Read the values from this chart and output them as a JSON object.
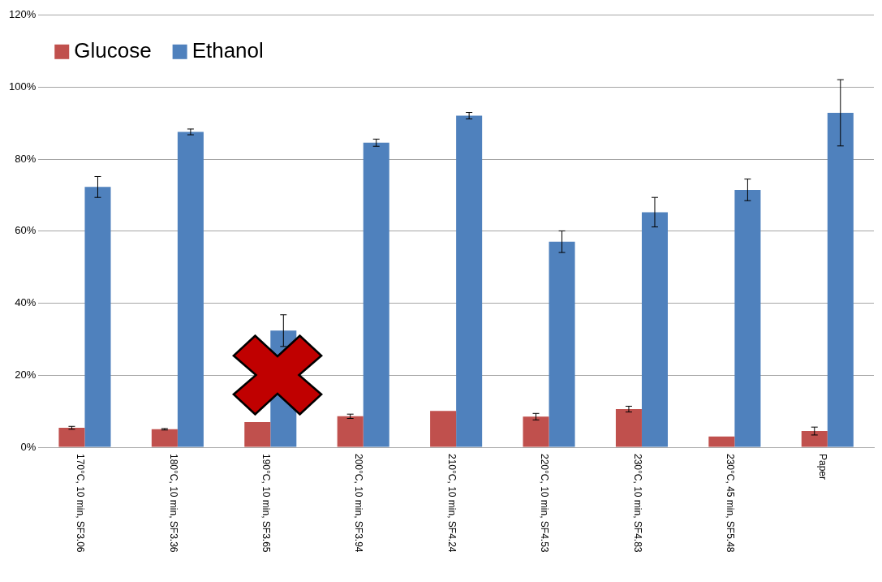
{
  "chart_data": {
    "type": "bar",
    "categories": [
      "170°C, 10 min, SF3.06",
      "180°C, 10 min, SF3.36",
      "190°C, 10 min, SF3.65",
      "200°C, 10 min, SF3.94",
      "210°C, 10 min, SF4.24",
      "220°C, 10 min, SF4.53",
      "230°C, 10 min, SF4.83",
      "230°C, 45 min, SF5.48",
      "Paper"
    ],
    "series": [
      {
        "name": "Glucose",
        "color": "#c0504d",
        "values": [
          5.4,
          5.0,
          7.0,
          8.6,
          10.1,
          8.5,
          10.6,
          3.0,
          4.5
        ],
        "errors": [
          0.4,
          0.2,
          null,
          0.6,
          null,
          0.9,
          0.8,
          null,
          1.1
        ]
      },
      {
        "name": "Ethanol",
        "color": "#4f81bd",
        "values": [
          72.3,
          87.6,
          32.4,
          84.6,
          92.1,
          57.1,
          65.3,
          71.5,
          92.9
        ],
        "errors": [
          2.9,
          0.8,
          4.4,
          1.0,
          0.9,
          3.0,
          4.1,
          3.0,
          9.2
        ]
      }
    ],
    "ylim": [
      0,
      120
    ],
    "yticks": [
      {
        "value": 0,
        "label": "0%"
      },
      {
        "value": 20,
        "label": "20%"
      },
      {
        "value": 40,
        "label": "40%"
      },
      {
        "value": 60,
        "label": "60%"
      },
      {
        "value": 80,
        "label": "80%"
      },
      {
        "value": 100,
        "label": "100%"
      },
      {
        "value": 120,
        "label": "120%"
      }
    ],
    "grid": "y",
    "legend": "top left"
  }
}
